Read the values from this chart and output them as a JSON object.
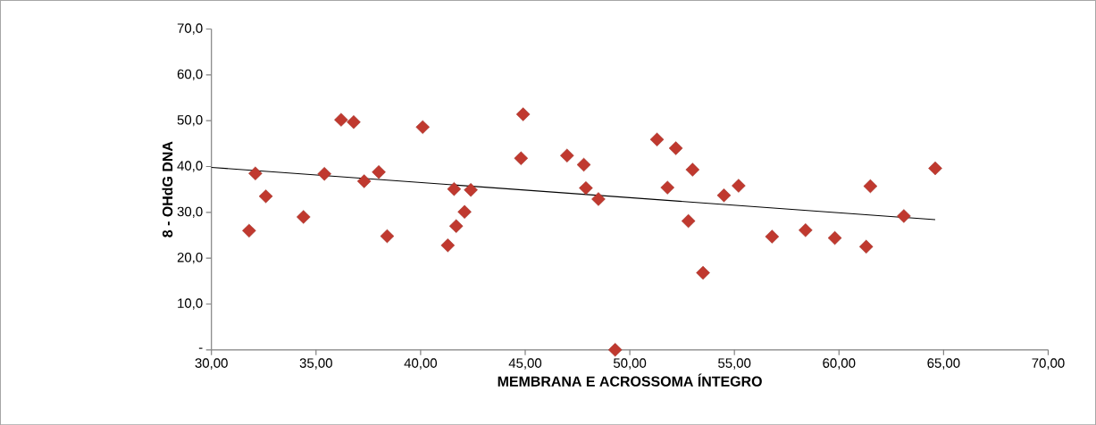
{
  "chart_data": {
    "type": "scatter",
    "xlabel": "MEMBRANA E ACROSSOMA ÍNTEGRO",
    "ylabel": "8 - OHdG  DNA",
    "xlim": [
      30,
      70
    ],
    "ylim": [
      0,
      70
    ],
    "xticks": [
      {
        "value": 30,
        "label": "30,00"
      },
      {
        "value": 35,
        "label": "35,00"
      },
      {
        "value": 40,
        "label": "40,00"
      },
      {
        "value": 45,
        "label": "45,00"
      },
      {
        "value": 50,
        "label": "50,00"
      },
      {
        "value": 55,
        "label": "55,00"
      },
      {
        "value": 60,
        "label": "60,00"
      },
      {
        "value": 65,
        "label": "65,00"
      },
      {
        "value": 70,
        "label": "70,00"
      }
    ],
    "yticks": [
      {
        "value": 0,
        "label": "-"
      },
      {
        "value": 10,
        "label": "10,0"
      },
      {
        "value": 20,
        "label": "20,0"
      },
      {
        "value": 30,
        "label": "30,0"
      },
      {
        "value": 40,
        "label": "40,0"
      },
      {
        "value": 50,
        "label": "50,0"
      },
      {
        "value": 60,
        "label": "60,0"
      },
      {
        "value": 70,
        "label": "70,0"
      }
    ],
    "series": [
      {
        "color": "#c0392f",
        "marker": "diamond",
        "x": [
          31.8,
          32.1,
          32.6,
          34.4,
          35.4,
          36.2,
          36.8,
          37.3,
          38.0,
          38.4,
          40.1,
          41.3,
          41.6,
          41.7,
          42.1,
          42.4,
          44.9,
          44.8,
          47.0,
          47.8,
          47.9,
          48.5,
          49.3,
          51.3,
          52.2,
          51.8,
          53.0,
          52.8,
          53.5,
          54.5,
          55.2,
          56.8,
          58.4,
          59.8,
          61.3,
          61.5,
          63.1,
          64.6
        ],
        "values": [
          26.0,
          38.5,
          33.5,
          29.0,
          38.4,
          50.2,
          49.7,
          36.8,
          38.8,
          24.8,
          48.6,
          22.8,
          35.1,
          27.0,
          30.1,
          34.9,
          51.4,
          41.8,
          42.4,
          40.4,
          35.3,
          32.9,
          0,
          45.9,
          44.0,
          35.4,
          39.3,
          28.1,
          16.8,
          33.7,
          35.8,
          24.7,
          26.1,
          24.4,
          22.5,
          35.7,
          29.2,
          39.6
        ]
      },
      {
        "type": "line",
        "color": "#000000",
        "marker": "none",
        "line_style": "solid",
        "x": [
          30,
          64.6
        ],
        "values": [
          39.8,
          28.4
        ]
      }
    ]
  }
}
